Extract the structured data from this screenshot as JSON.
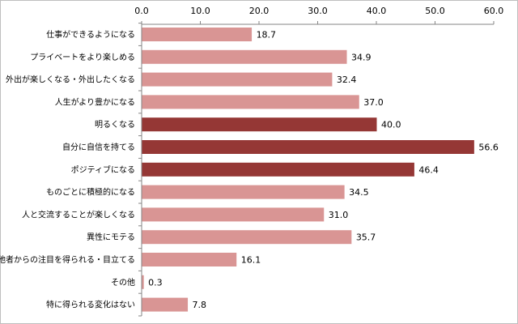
{
  "chart_data": {
    "type": "bar",
    "orientation": "horizontal",
    "categories": [
      "仕事ができるようになる",
      "プライベートをより楽しめる",
      "外出が楽しくなる・外出したくなる",
      "人生がより豊かになる",
      "明るくなる",
      "自分に自信を持てる",
      "ポジティブになる",
      "ものごとに積極的になる",
      "人と交流することが楽しくなる",
      "異性にモテる",
      "他者からの注目を得られる・目立てる",
      "その他",
      "特に得られる変化はない"
    ],
    "values": [
      18.7,
      34.9,
      32.4,
      37.0,
      40.0,
      56.6,
      46.4,
      34.5,
      31.0,
      35.7,
      16.1,
      0.3,
      7.8
    ],
    "value_labels": [
      "18.7",
      "34.9",
      "32.4",
      "37.0",
      "40.0",
      "56.6",
      "46.4",
      "34.5",
      "31.0",
      "35.7",
      "16.1",
      "0.3",
      "7.8"
    ],
    "highlighted": [
      false,
      false,
      false,
      false,
      true,
      true,
      true,
      false,
      false,
      false,
      false,
      false,
      false
    ],
    "xlim": [
      0,
      60
    ],
    "ticks": [
      "0.0",
      "10.0",
      "20.0",
      "30.0",
      "40.0",
      "50.0",
      "60.0"
    ],
    "tick_values": [
      0,
      10,
      20,
      30,
      40,
      50,
      60
    ],
    "axis_position": "top",
    "grid": false,
    "title": "",
    "xlabel": "",
    "ylabel": "",
    "colors": {
      "bar": "#d99594",
      "highlight": "#953735",
      "axis": "#868686",
      "text": "#000000"
    }
  }
}
